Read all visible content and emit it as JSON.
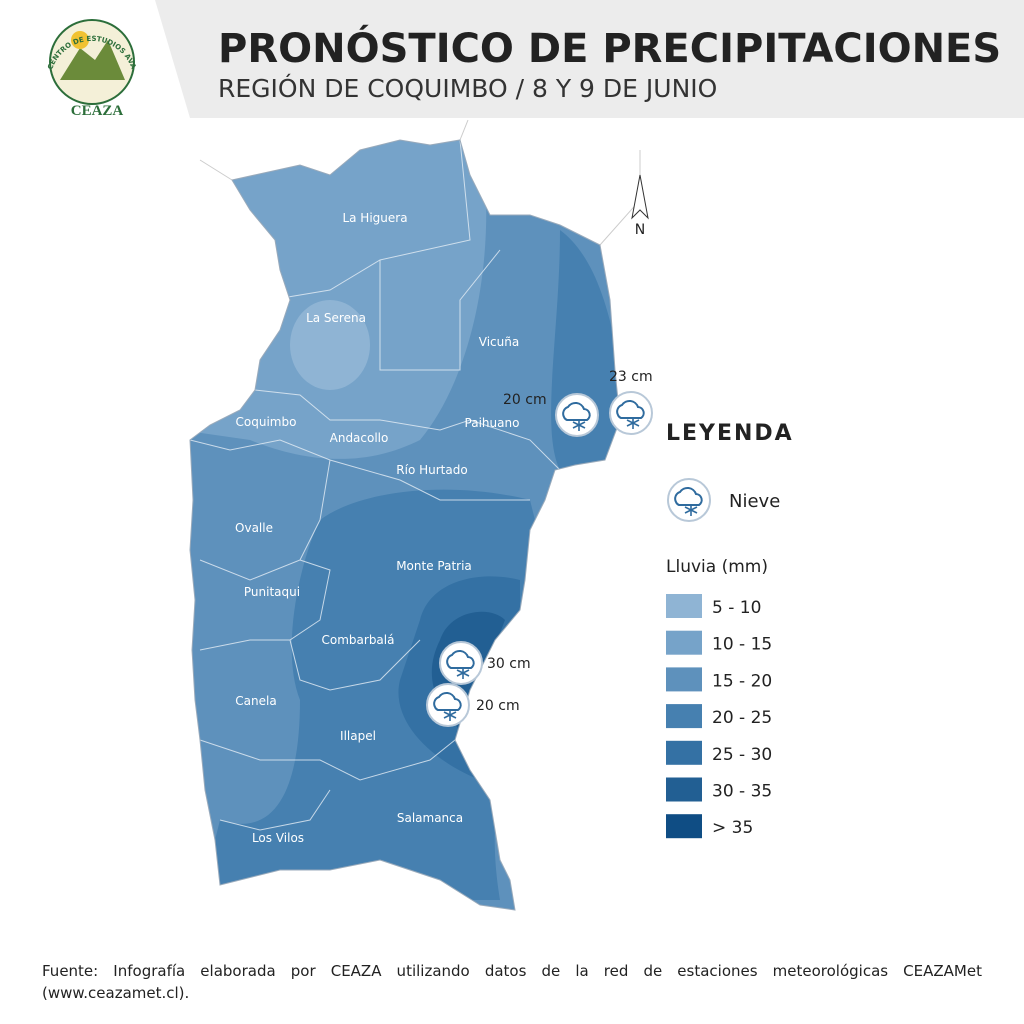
{
  "header": {
    "logo": {
      "arc": "CENTRO DE ESTUDIOS AVANZADOS EN ZONAS ÁRIDAS",
      "name": "CEAZA"
    },
    "title": "PRONÓSTICO DE PRECIPITACIONES",
    "subtitle": "REGIÓN DE COQUIMBO / 8 Y 9 DE JUNIO"
  },
  "map": {
    "north": "N",
    "communes": [
      "La Higuera",
      "La Serena",
      "Vicuña",
      "Coquimbo",
      "Andacollo",
      "Paihuano",
      "Río Hurtado",
      "Ovalle",
      "Monte Patria",
      "Punitaqui",
      "Combarbalá",
      "Canela",
      "Illapel",
      "Los Vilos",
      "Salamanca"
    ],
    "snow": [
      "20 cm",
      "23 cm",
      "30 cm",
      "20 cm"
    ]
  },
  "legend": {
    "title": "LEYENDA",
    "snow": "Nieve",
    "rain_title": "Lluvia (mm)",
    "rain_classes": [
      {
        "label": "5 - 10",
        "color": "#8fb4d4"
      },
      {
        "label": "10 - 15",
        "color": "#76a3c9"
      },
      {
        "label": "15 - 20",
        "color": "#5e91bc"
      },
      {
        "label": "20 - 25",
        "color": "#4680b0"
      },
      {
        "label": "25 - 30",
        "color": "#3471a4"
      },
      {
        "label": "30 - 35",
        "color": "#225f93"
      },
      {
        "label": "> 35",
        "color": "#0f4d84"
      }
    ]
  },
  "footer": {
    "source": "Fuente: Infografía elaborada por CEAZA utilizando datos de la red de estaciones meteorológicas CEAZAMet (www.ceazamet.cl)."
  }
}
